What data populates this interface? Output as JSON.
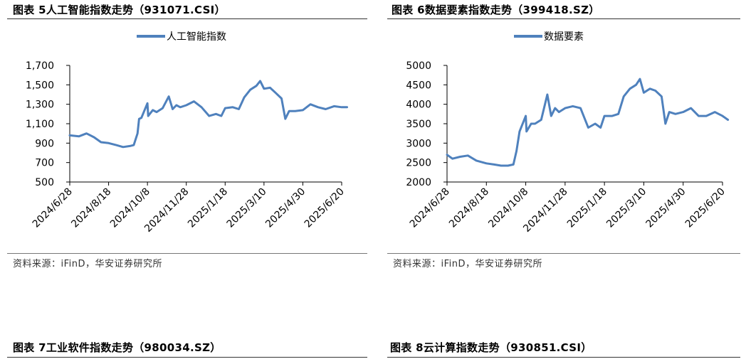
{
  "figures": [
    {
      "title": "图表 5人工智能指数走势（931071.CSI）",
      "source": "资料来源：iFinD，华安证券研究所"
    },
    {
      "title": "图表 6数据要素指数走势（399418.SZ）",
      "source": "资料来源：iFinD，华安证券研究所"
    },
    {
      "title": "图表 7工业软件指数走势（980034.SZ）"
    },
    {
      "title": "图表 8云计算指数走势（930851.CSI）"
    }
  ],
  "chart_data": [
    {
      "type": "line",
      "title": "",
      "series": [
        {
          "name": "人工智能指数",
          "color": "#4f81bd",
          "x": [
            "2024/6/28",
            "2024/7/10",
            "2024/7/20",
            "2024/7/30",
            "2024/8/8",
            "2024/8/18",
            "2024/8/28",
            "2024/9/6",
            "2024/9/15",
            "2024/9/20",
            "2024/9/25",
            "2024/9/27",
            "2024/9/30",
            "2024/10/8",
            "2024/10/9",
            "2024/10/15",
            "2024/10/20",
            "2024/10/28",
            "2024/11/5",
            "2024/11/10",
            "2024/11/15",
            "2024/11/20",
            "2024/11/28",
            "2024/12/8",
            "2024/12/18",
            "2024/12/28",
            "2025/1/6",
            "2025/1/13",
            "2025/1/18",
            "2025/1/28",
            "2025/2/5",
            "2025/2/12",
            "2025/2/20",
            "2025/2/28",
            "2025/3/5",
            "2025/3/10",
            "2025/3/18",
            "2025/3/25",
            "2025/4/2",
            "2025/4/7",
            "2025/4/12",
            "2025/4/20",
            "2025/4/30",
            "2025/5/10",
            "2025/5/20",
            "2025/5/30",
            "2025/6/10",
            "2025/6/20",
            "2025/6/27"
          ],
          "values": [
            980,
            970,
            1000,
            960,
            910,
            900,
            880,
            860,
            870,
            880,
            1000,
            1150,
            1160,
            1310,
            1180,
            1240,
            1220,
            1260,
            1380,
            1250,
            1290,
            1270,
            1290,
            1330,
            1270,
            1180,
            1200,
            1180,
            1260,
            1270,
            1250,
            1370,
            1450,
            1490,
            1540,
            1460,
            1470,
            1420,
            1360,
            1150,
            1230,
            1230,
            1240,
            1300,
            1270,
            1250,
            1280,
            1270,
            1270
          ]
        }
      ],
      "xlabel": "",
      "ylabel": "",
      "x_ticks": [
        "2024/6/28",
        "2024/8/18",
        "2024/10/8",
        "2024/11/28",
        "2025/1/18",
        "2025/3/10",
        "2025/4/30",
        "2025/6/20"
      ],
      "y_ticks": [
        "500",
        "700",
        "900",
        "1,100",
        "1,300",
        "1,500",
        "1,700"
      ],
      "ylim": [
        500,
        1700
      ],
      "legend": "top-center",
      "grid": false
    },
    {
      "type": "line",
      "title": "",
      "series": [
        {
          "name": "数据要素",
          "color": "#4f81bd",
          "x": [
            "2024/6/28",
            "2024/7/5",
            "2024/7/15",
            "2024/7/25",
            "2024/8/5",
            "2024/8/18",
            "2024/8/28",
            "2024/9/6",
            "2024/9/15",
            "2024/9/22",
            "2024/9/26",
            "2024/9/30",
            "2024/10/8",
            "2024/10/9",
            "2024/10/15",
            "2024/10/20",
            "2024/10/28",
            "2024/11/5",
            "2024/11/10",
            "2024/11/15",
            "2024/11/20",
            "2024/11/28",
            "2024/12/8",
            "2024/12/18",
            "2024/12/28",
            "2025/1/6",
            "2025/1/13",
            "2025/1/18",
            "2025/1/28",
            "2025/2/5",
            "2025/2/12",
            "2025/2/20",
            "2025/2/28",
            "2025/3/5",
            "2025/3/10",
            "2025/3/18",
            "2025/3/25",
            "2025/4/2",
            "2025/4/7",
            "2025/4/12",
            "2025/4/20",
            "2025/4/30",
            "2025/5/10",
            "2025/5/20",
            "2025/5/30",
            "2025/6/10",
            "2025/6/20",
            "2025/6/27"
          ],
          "values": [
            2700,
            2600,
            2650,
            2680,
            2550,
            2480,
            2450,
            2420,
            2420,
            2450,
            2800,
            3300,
            3700,
            3300,
            3500,
            3500,
            3600,
            4250,
            3700,
            3900,
            3800,
            3900,
            3950,
            3900,
            3400,
            3500,
            3400,
            3700,
            3700,
            3750,
            4200,
            4400,
            4500,
            4650,
            4300,
            4400,
            4350,
            4200,
            3500,
            3800,
            3750,
            3800,
            3900,
            3700,
            3700,
            3800,
            3700,
            3600
          ]
        }
      ],
      "xlabel": "",
      "ylabel": "",
      "x_ticks": [
        "2024/6/28",
        "2024/8/18",
        "2024/10/8",
        "2024/11/28",
        "2025/1/18",
        "2025/3/10",
        "2025/4/30",
        "2025/6/20"
      ],
      "y_ticks": [
        "2000",
        "2500",
        "3000",
        "3500",
        "4000",
        "4500",
        "5000"
      ],
      "ylim": [
        2000,
        5000
      ],
      "legend": "top-center",
      "grid": false
    }
  ]
}
